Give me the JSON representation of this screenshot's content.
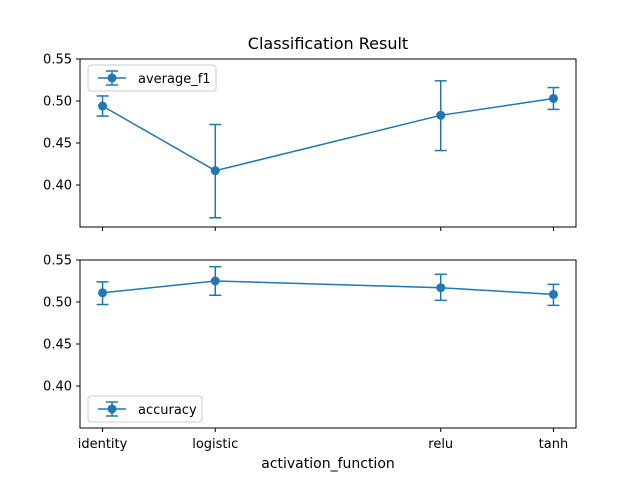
{
  "chart_data": {
    "title": "Classification Result",
    "xlabel": "activation_function",
    "categories": [
      "identity",
      "logistic",
      "relu",
      "tanh"
    ],
    "x": [
      0,
      1,
      3,
      4
    ],
    "color": "#1f77b4",
    "subplots": [
      {
        "type": "line",
        "series_name": "average_f1",
        "legend_loc": "upper left",
        "ylim": [
          0.35,
          0.55
        ],
        "yticks": [
          0.4,
          0.45,
          0.5,
          0.55
        ],
        "ytick_labels": [
          "0.40",
          "0.45",
          "0.50",
          "0.55"
        ],
        "values": [
          0.494,
          0.417,
          0.483,
          0.503
        ],
        "err_low": [
          0.482,
          0.361,
          0.441,
          0.49
        ],
        "err_high": [
          0.506,
          0.472,
          0.524,
          0.516
        ]
      },
      {
        "type": "line",
        "series_name": "accuracy",
        "legend_loc": "lower left",
        "ylim": [
          0.35,
          0.55
        ],
        "yticks": [
          0.4,
          0.45,
          0.5,
          0.55
        ],
        "ytick_labels": [
          "0.40",
          "0.45",
          "0.50",
          "0.55"
        ],
        "values": [
          0.511,
          0.525,
          0.517,
          0.509
        ],
        "err_low": [
          0.497,
          0.508,
          0.502,
          0.496
        ],
        "err_high": [
          0.524,
          0.542,
          0.533,
          0.521
        ]
      }
    ]
  }
}
